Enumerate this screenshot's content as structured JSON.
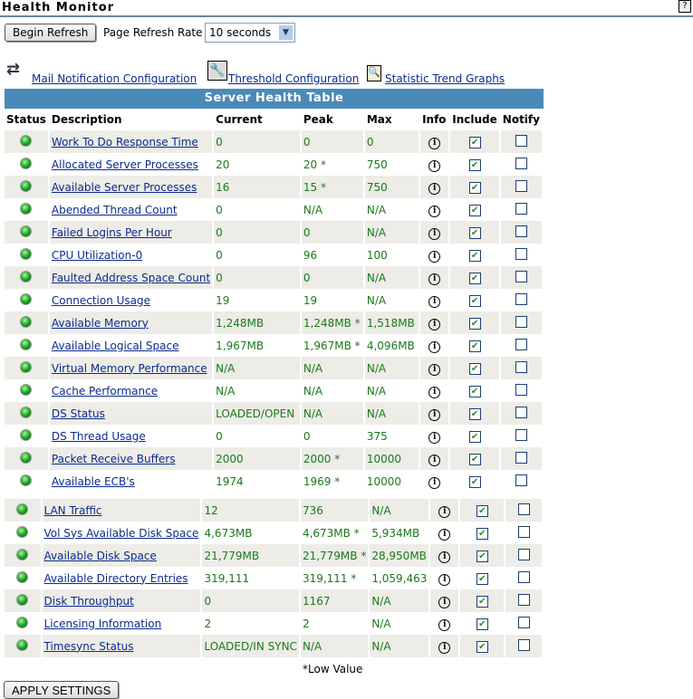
{
  "title": "Health Monitor",
  "help": "?",
  "begin_refresh": "Begin Refresh",
  "refresh_rate_label": "Page Refresh Rate",
  "refresh_rate_value": "10 seconds",
  "links": [
    "Mail Notification Configuration",
    "Threshold Configuration",
    "Statistic Trend Graphs"
  ],
  "table_title": "Server Health Table",
  "columns": [
    "Status",
    "Description",
    "Current",
    "Peak",
    "Max",
    "Info",
    "Include",
    "Notify"
  ],
  "rows": [
    {
      "d": "Work To Do Response Time",
      "c": "0",
      "p": "0",
      "m": "0"
    },
    {
      "d": "Allocated Server Processes",
      "c": "20",
      "p": "20 *",
      "m": "750"
    },
    {
      "d": "Available Server Processes",
      "c": "16",
      "p": "15 *",
      "m": "750"
    },
    {
      "d": "Abended Thread Count",
      "c": "0",
      "p": "N/A",
      "m": "N/A"
    },
    {
      "d": "Failed Logins Per Hour",
      "c": "0",
      "p": "0",
      "m": "N/A"
    },
    {
      "d": "CPU Utilization-0",
      "c": "0",
      "p": "96",
      "m": "100"
    },
    {
      "d": "Faulted Address Space Count",
      "c": "0",
      "p": "0",
      "m": "N/A"
    },
    {
      "d": "Connection Usage",
      "c": "19",
      "p": "19",
      "m": "N/A"
    },
    {
      "d": "Available Memory",
      "c": "1,248MB",
      "p": "1,248MB *",
      "m": "1,518MB"
    },
    {
      "d": "Available Logical Space",
      "c": "1,967MB",
      "p": "1,967MB *",
      "m": "4,096MB"
    },
    {
      "d": "Virtual Memory Performance",
      "c": "N/A",
      "p": "N/A",
      "m": "N/A"
    },
    {
      "d": "Cache Performance",
      "c": "N/A",
      "p": "N/A",
      "m": "N/A"
    },
    {
      "d": "DS Status",
      "c": "LOADED/OPEN",
      "p": "N/A",
      "m": "N/A"
    },
    {
      "d": "DS Thread Usage",
      "c": "0",
      "p": "0",
      "m": "375"
    },
    {
      "d": "Packet Receive Buffers",
      "c": "2000",
      "p": "2000 *",
      "m": "10000"
    },
    {
      "d": "Available ECB's",
      "c": "1974",
      "p": "1969 *",
      "m": "10000"
    }
  ],
  "rows2": [
    {
      "d": "LAN Traffic",
      "c": "12",
      "p": "736",
      "m": "N/A"
    },
    {
      "d": "Vol Sys Available Disk Space",
      "c": "4,673MB",
      "p": "4,673MB *",
      "m": "5,934MB"
    },
    {
      "d": "Available Disk Space",
      "c": "21,779MB",
      "p": "21,779MB *",
      "m": "28,950MB"
    },
    {
      "d": "Available Directory Entries",
      "c": "319,111",
      "p": "319,111 *",
      "m": "1,059,463"
    },
    {
      "d": "Disk Throughput",
      "c": "0",
      "p": "1167",
      "m": "N/A"
    },
    {
      "d": "Licensing Information",
      "c": "2",
      "p": "2",
      "m": "N/A"
    },
    {
      "d": "Timesync Status",
      "c": "LOADED/IN SYNC",
      "p": "N/A",
      "m": "N/A"
    }
  ],
  "include_checked": true,
  "notify_checked": false,
  "status_color": "#1a9a1a",
  "footnote": "*Low Value",
  "apply": "APPLY SETTINGS"
}
